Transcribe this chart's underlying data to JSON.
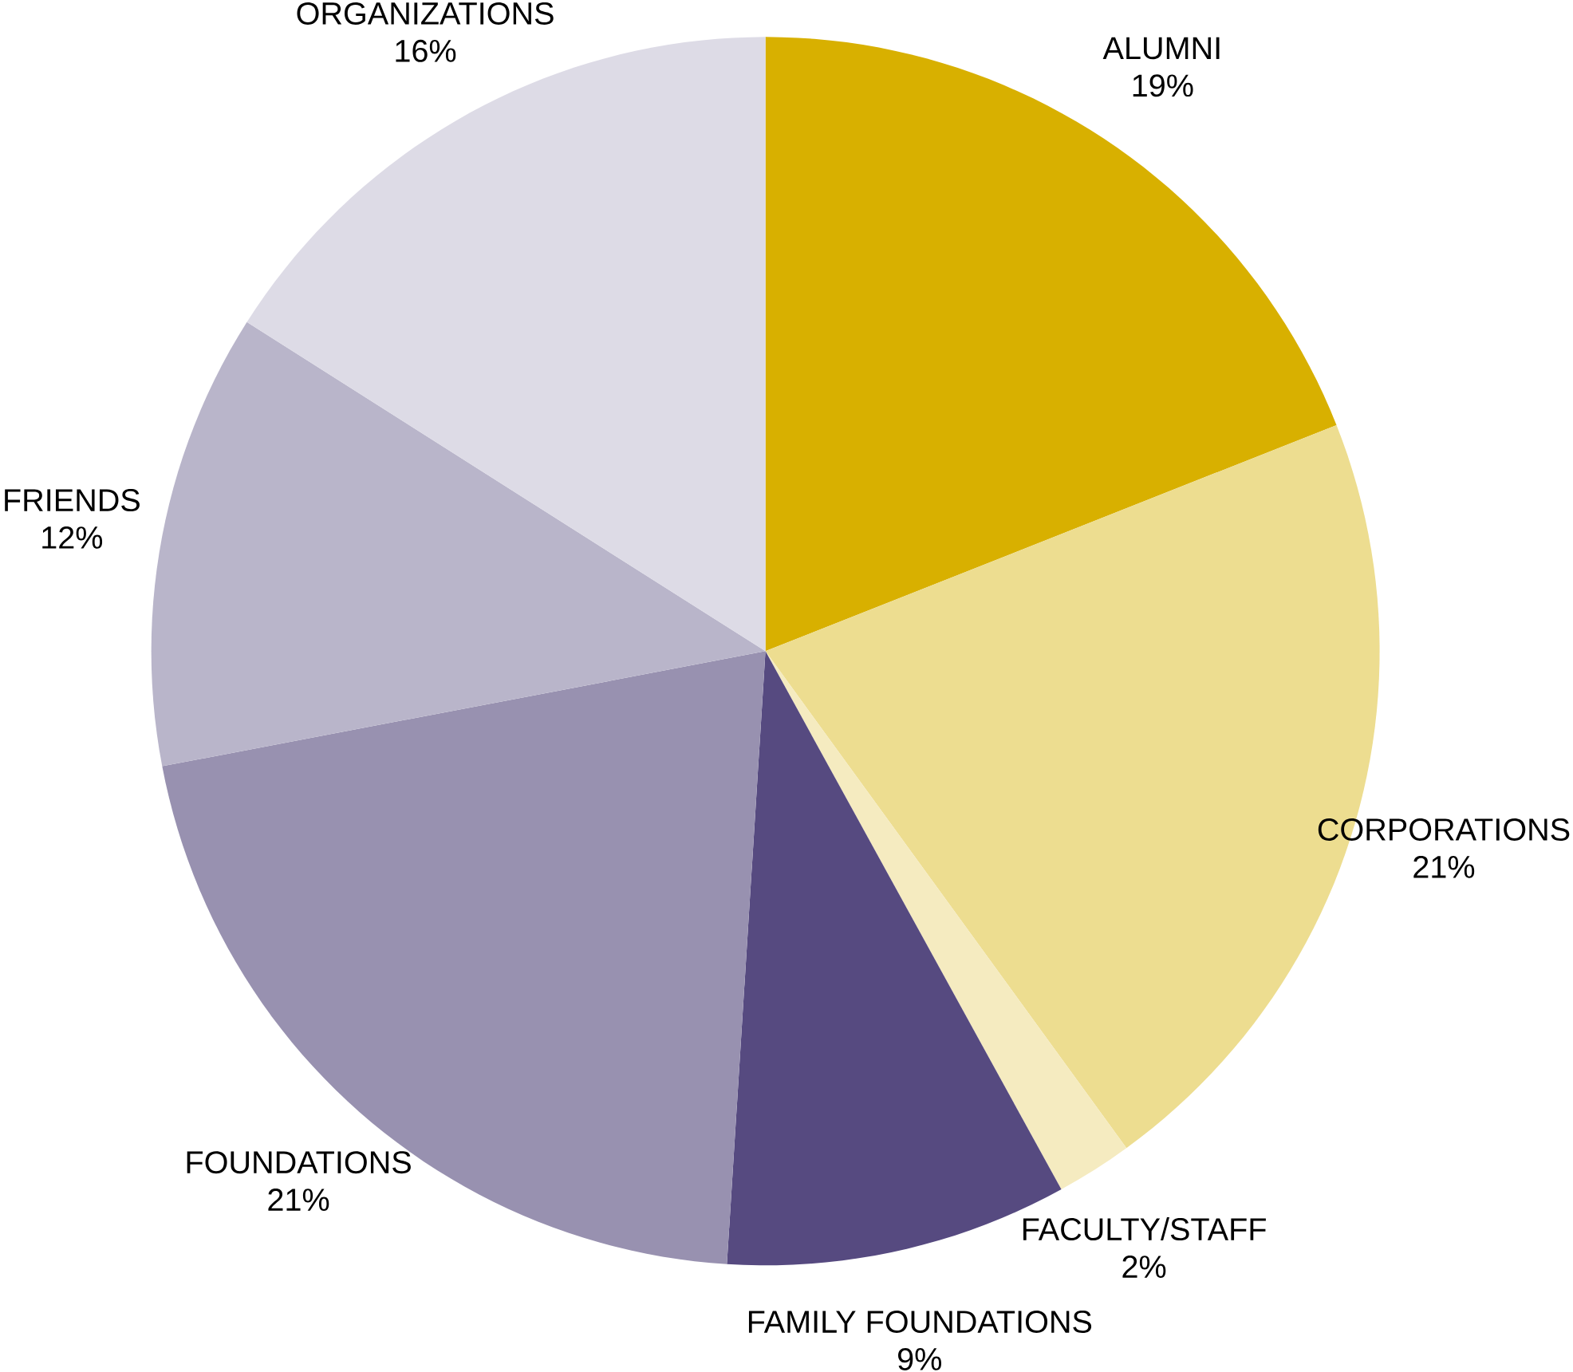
{
  "chart_data": {
    "type": "pie",
    "categories": [
      "ALUMNI",
      "CORPORATIONS",
      "FACULTY/STAFF",
      "FAMILY FOUNDATIONS",
      "FOUNDATIONS",
      "FRIENDS",
      "ORGANIZATIONS"
    ],
    "values": [
      19,
      21,
      2,
      9,
      21,
      12,
      16
    ],
    "value_labels": [
      "19%",
      "21%",
      "2%",
      "9%",
      "21%",
      "12%",
      "16%"
    ],
    "colors": [
      "#d8b000",
      "#eddd90",
      "#f5ebc0",
      "#564a80",
      "#9891b0",
      "#b9b5ca",
      "#dddbe6"
    ]
  }
}
